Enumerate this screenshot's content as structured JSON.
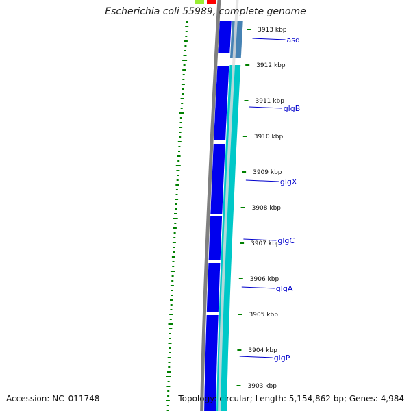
{
  "title": "Escherichia coli 55989, complete genome",
  "footer": {
    "accession_label": "Accession:",
    "accession": "NC_011748",
    "topology_label": "Topology:",
    "topology": "circular",
    "length_label": "Length:",
    "length": "5,154,862 bp",
    "genes_label": "Genes:",
    "genes": "4,984"
  },
  "colors": {
    "forward_cds": "#0000ee",
    "reverse_cds": "#00c8c8",
    "genome_ring": "#808080",
    "gc_skew": "#008000",
    "gene_label": "#0000cc",
    "top_green": "#99ee33",
    "top_red": "#ff0000",
    "asd_gene": "#4682b4"
  },
  "ticks": [
    {
      "label": "3913 kbp",
      "kbp": 3913
    },
    {
      "label": "3912 kbp",
      "kbp": 3912
    },
    {
      "label": "3911 kbp",
      "kbp": 3911
    },
    {
      "label": "3910 kbp",
      "kbp": 3910
    },
    {
      "label": "3909 kbp",
      "kbp": 3909
    },
    {
      "label": "3908 kbp",
      "kbp": 3908
    },
    {
      "label": "3907 kbp",
      "kbp": 3907
    },
    {
      "label": "3906 kbp",
      "kbp": 3906
    },
    {
      "label": "3905 kbp",
      "kbp": 3905
    },
    {
      "label": "3904 kbp",
      "kbp": 3904
    },
    {
      "label": "3903 kbp",
      "kbp": 3903
    }
  ],
  "genes": [
    {
      "name": "asd"
    },
    {
      "name": "glgB"
    },
    {
      "name": "glgX"
    },
    {
      "name": "glgC"
    },
    {
      "name": "glgA"
    },
    {
      "name": "glgP"
    }
  ]
}
